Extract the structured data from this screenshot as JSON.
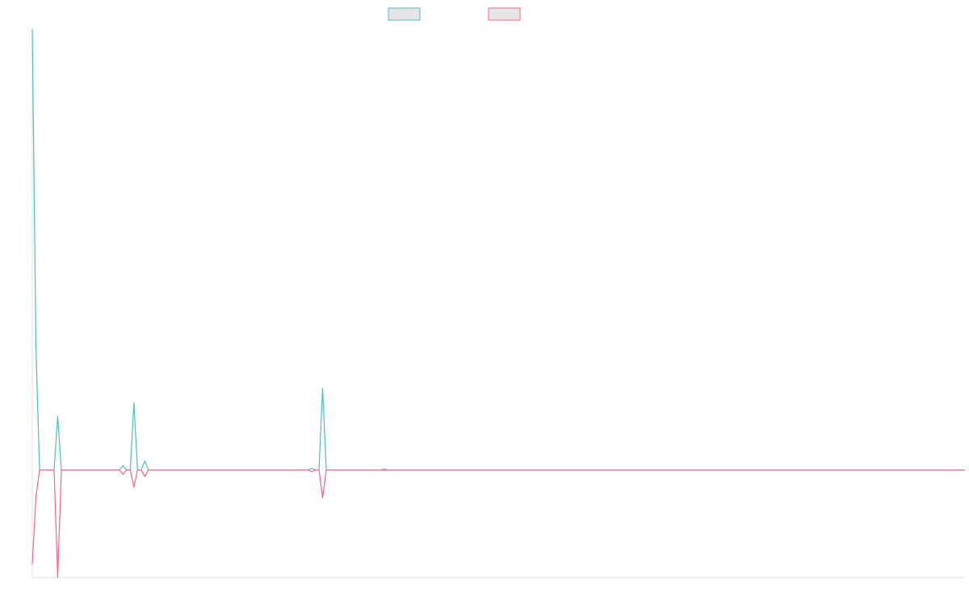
{
  "chart_data": {
    "type": "line",
    "title": "",
    "xlabel": "",
    "ylabel": "",
    "grid": false,
    "legend_placement": "top-center",
    "xlim": [
      0,
      257
    ],
    "ylim": [
      -20,
      82
    ],
    "colors": {
      "teal": "#4bc0c0",
      "pink": "#ff6384",
      "legend_fill": "#e5e5e5",
      "axis": "#e0e0e0"
    },
    "series": [
      {
        "name": "",
        "color": "#4bc0c0",
        "points": [
          [
            0,
            82
          ],
          [
            1,
            23
          ],
          [
            2,
            0
          ],
          [
            6,
            0
          ],
          [
            7,
            10
          ],
          [
            8,
            0
          ],
          [
            24,
            0
          ],
          [
            25,
            0.8
          ],
          [
            26,
            0
          ],
          [
            27,
            0
          ],
          [
            28,
            12.5
          ],
          [
            29,
            0
          ],
          [
            30,
            0
          ],
          [
            31,
            1.7
          ],
          [
            32,
            0
          ],
          [
            76,
            0
          ],
          [
            77,
            0.3
          ],
          [
            78,
            0
          ],
          [
            79,
            0
          ],
          [
            80,
            15.2
          ],
          [
            81,
            0
          ],
          [
            96,
            0
          ],
          [
            97,
            0.2
          ],
          [
            98,
            0
          ],
          [
            257,
            0
          ]
        ]
      },
      {
        "name": "",
        "color": "#ff6384",
        "points": [
          [
            0,
            -17.5
          ],
          [
            1,
            -5
          ],
          [
            2,
            0
          ],
          [
            6,
            0
          ],
          [
            7,
            -20
          ],
          [
            8,
            0
          ],
          [
            24,
            0
          ],
          [
            25,
            -0.8
          ],
          [
            26,
            0
          ],
          [
            27,
            0
          ],
          [
            28,
            -3.2
          ],
          [
            29,
            0
          ],
          [
            30,
            0
          ],
          [
            31,
            -1.2
          ],
          [
            32,
            0
          ],
          [
            76,
            0
          ],
          [
            77,
            -0.3
          ],
          [
            78,
            0
          ],
          [
            79,
            0
          ],
          [
            80,
            -5.2
          ],
          [
            81,
            0
          ],
          [
            96,
            0
          ],
          [
            97,
            -0.1
          ],
          [
            98,
            0
          ],
          [
            257,
            0
          ]
        ]
      }
    ]
  }
}
